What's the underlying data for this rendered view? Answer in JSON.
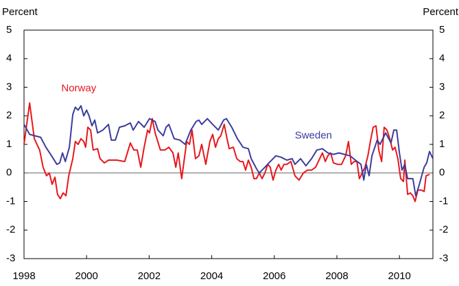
{
  "chart_data": {
    "type": "line",
    "y_label": "Percent",
    "y2_label": "Percent",
    "xlim": [
      1998,
      2011.07
    ],
    "xticks": [
      1998,
      2000,
      2002,
      2004,
      2006,
      2008,
      2010
    ],
    "ylim": [
      -3,
      5
    ],
    "yticks": [
      -3,
      -2,
      -1,
      0,
      1,
      2,
      3,
      4,
      5
    ],
    "y2lim": [
      -3,
      5
    ],
    "y2ticks": [
      -3,
      -2,
      -1,
      0,
      1,
      2,
      3,
      4,
      5
    ],
    "zero_line": true,
    "series": [
      {
        "name": "Norway",
        "color": "#e8161b",
        "x": [
          1998.0,
          1998.18,
          1998.33,
          1998.5,
          1998.61,
          1998.72,
          1998.81,
          1998.9,
          1998.99,
          1999.07,
          1999.16,
          1999.25,
          1999.34,
          1999.43,
          1999.56,
          1999.64,
          1999.73,
          1999.82,
          1999.91,
          1999.97,
          2000.04,
          2000.13,
          2000.21,
          2000.35,
          2000.43,
          2000.57,
          2000.7,
          2000.96,
          2001.22,
          2001.4,
          2001.51,
          2001.62,
          2001.73,
          2001.84,
          2001.95,
          2002.01,
          2002.1,
          2002.19,
          2002.36,
          2002.5,
          2002.63,
          2002.76,
          2002.85,
          2002.93,
          2003.04,
          2003.2,
          2003.29,
          2003.37,
          2003.48,
          2003.59,
          2003.68,
          2003.81,
          2003.94,
          2004.03,
          2004.12,
          2004.21,
          2004.29,
          2004.4,
          2004.49,
          2004.56,
          2004.69,
          2004.8,
          2004.91,
          2005.0,
          2005.08,
          2005.17,
          2005.26,
          2005.35,
          2005.43,
          2005.52,
          2005.61,
          2005.7,
          2005.79,
          2005.87,
          2005.96,
          2006.05,
          2006.14,
          2006.22,
          2006.31,
          2006.4,
          2006.53,
          2006.66,
          2006.79,
          2006.93,
          2007.06,
          2007.19,
          2007.32,
          2007.45,
          2007.54,
          2007.63,
          2007.71,
          2007.8,
          2007.89,
          2008.02,
          2008.15,
          2008.28,
          2008.37,
          2008.46,
          2008.55,
          2008.64,
          2008.72,
          2008.81,
          2008.9,
          2008.99,
          2009.07,
          2009.16,
          2009.25,
          2009.34,
          2009.43,
          2009.51,
          2009.6,
          2009.69,
          2009.78,
          2009.86,
          2009.95,
          2010.04,
          2010.13,
          2010.17,
          2010.26,
          2010.35,
          2010.43,
          2010.5,
          2010.59,
          2010.7,
          2010.79,
          2010.85,
          2010.96
        ],
        "values": [
          1.0,
          2.45,
          1.2,
          0.8,
          0.2,
          -0.1,
          0.0,
          -0.4,
          -0.15,
          -0.75,
          -0.9,
          -0.7,
          -0.8,
          -0.1,
          0.5,
          1.1,
          1.0,
          1.2,
          1.1,
          0.9,
          1.6,
          1.5,
          0.8,
          0.85,
          0.5,
          0.35,
          0.45,
          0.45,
          0.4,
          1.05,
          0.8,
          0.8,
          0.2,
          0.9,
          1.5,
          1.4,
          1.9,
          1.4,
          0.8,
          0.8,
          0.9,
          0.7,
          0.2,
          0.7,
          -0.2,
          1.1,
          1.0,
          1.5,
          0.5,
          0.6,
          1.0,
          0.3,
          1.1,
          1.35,
          0.9,
          1.2,
          1.3,
          1.7,
          1.2,
          0.85,
          0.9,
          0.5,
          0.4,
          0.4,
          0.1,
          0.45,
          0.2,
          -0.2,
          -0.2,
          0.0,
          -0.2,
          0.0,
          0.3,
          0.2,
          -0.25,
          0.1,
          0.3,
          0.1,
          0.3,
          0.3,
          0.4,
          -0.1,
          -0.25,
          0.0,
          0.1,
          0.1,
          0.2,
          0.5,
          0.7,
          0.4,
          0.6,
          0.7,
          0.35,
          0.3,
          0.3,
          0.6,
          1.1,
          0.3,
          0.4,
          0.4,
          -0.2,
          0.0,
          0.2,
          0.6,
          1.1,
          1.6,
          1.65,
          0.8,
          0.4,
          1.6,
          1.5,
          1.2,
          0.8,
          0.9,
          0.5,
          -0.2,
          -0.3,
          0.45,
          -0.75,
          -0.7,
          -0.8,
          -1.0,
          -0.6,
          -0.6,
          -0.65,
          -0.1,
          -0.05
        ]
      },
      {
        "name": "Sweden",
        "color": "#3b3b9e",
        "x": [
          1998.0,
          1998.18,
          1998.35,
          1998.53,
          1998.7,
          1998.88,
          1999.05,
          1999.14,
          1999.23,
          1999.32,
          1999.45,
          1999.56,
          1999.64,
          1999.73,
          1999.82,
          1999.91,
          2000.0,
          2000.08,
          2000.17,
          2000.26,
          2000.35,
          2000.52,
          2000.7,
          2000.79,
          2000.92,
          2001.05,
          2001.22,
          2001.4,
          2001.49,
          2001.66,
          2001.84,
          2002.01,
          2002.19,
          2002.28,
          2002.45,
          2002.54,
          2002.63,
          2002.8,
          2002.98,
          2003.15,
          2003.33,
          2003.5,
          2003.59,
          2003.68,
          2003.86,
          2004.03,
          2004.21,
          2004.38,
          2004.47,
          2004.64,
          2004.82,
          2005.0,
          2005.17,
          2005.26,
          2005.43,
          2005.52,
          2005.7,
          2005.87,
          2006.05,
          2006.22,
          2006.4,
          2006.57,
          2006.66,
          2006.84,
          2007.01,
          2007.19,
          2007.36,
          2007.54,
          2007.71,
          2007.89,
          2008.07,
          2008.24,
          2008.42,
          2008.59,
          2008.77,
          2008.86,
          2008.94,
          2009.03,
          2009.12,
          2009.29,
          2009.38,
          2009.56,
          2009.73,
          2009.82,
          2009.91,
          2010.0,
          2010.08,
          2010.17,
          2010.26,
          2010.43,
          2010.52,
          2010.61,
          2010.79,
          2010.87,
          2010.96,
          2011.07
        ],
        "values": [
          1.7,
          1.35,
          1.3,
          1.25,
          0.9,
          0.6,
          0.3,
          0.35,
          0.7,
          0.4,
          0.9,
          2.05,
          2.3,
          2.2,
          2.35,
          2.0,
          2.2,
          2.0,
          1.65,
          1.85,
          1.4,
          1.5,
          1.7,
          1.15,
          1.15,
          1.6,
          1.65,
          1.75,
          1.5,
          1.8,
          1.6,
          1.9,
          1.8,
          1.5,
          1.3,
          1.6,
          1.7,
          1.2,
          1.15,
          1.0,
          1.5,
          1.8,
          1.85,
          1.7,
          1.9,
          1.7,
          1.5,
          1.85,
          1.9,
          1.6,
          1.2,
          0.9,
          0.85,
          0.5,
          0.15,
          0.0,
          0.2,
          0.4,
          0.6,
          0.55,
          0.45,
          0.5,
          0.3,
          0.5,
          0.25,
          0.5,
          0.8,
          0.85,
          0.7,
          0.65,
          0.7,
          0.65,
          0.6,
          0.45,
          0.3,
          -0.25,
          0.3,
          -0.1,
          0.6,
          1.15,
          1.0,
          1.4,
          1.05,
          1.5,
          1.5,
          0.7,
          0.1,
          0.3,
          -0.2,
          -0.2,
          -0.8,
          -0.5,
          0.2,
          0.35,
          0.75,
          0.5
        ]
      }
    ],
    "annotations": [
      {
        "text": "Norway",
        "x": 1999.75,
        "y": 2.95,
        "color": "#e8161b"
      },
      {
        "text": "Sweden",
        "x": 2007.25,
        "y": 1.3,
        "color": "#3b3b9e"
      }
    ]
  }
}
